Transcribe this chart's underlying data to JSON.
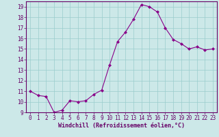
{
  "x": [
    0,
    1,
    2,
    3,
    4,
    5,
    6,
    7,
    8,
    9,
    10,
    11,
    12,
    13,
    14,
    15,
    16,
    17,
    18,
    19,
    20,
    21,
    22,
    23
  ],
  "y": [
    11.0,
    10.6,
    10.5,
    9.0,
    9.2,
    10.1,
    10.0,
    10.1,
    10.7,
    11.1,
    13.5,
    15.7,
    16.6,
    17.8,
    19.2,
    19.0,
    18.5,
    17.0,
    15.9,
    15.5,
    15.0,
    15.2,
    14.9,
    15.0
  ],
  "line_color": "#880088",
  "marker": "D",
  "marker_size": 2.0,
  "bg_color": "#cce8e8",
  "grid_color": "#99cccc",
  "xlabel": "Windchill (Refroidissement éolien,°C)",
  "xlabel_fontsize": 6.0,
  "ylim": [
    9.0,
    19.5
  ],
  "xlim": [
    -0.5,
    23.5
  ],
  "yticks": [
    9,
    10,
    11,
    12,
    13,
    14,
    15,
    16,
    17,
    18,
    19
  ],
  "xticks": [
    0,
    1,
    2,
    3,
    4,
    5,
    6,
    7,
    8,
    9,
    10,
    11,
    12,
    13,
    14,
    15,
    16,
    17,
    18,
    19,
    20,
    21,
    22,
    23
  ],
  "tick_fontsize": 5.5,
  "tick_color": "#660066",
  "spine_color": "#660066",
  "line_width": 0.8
}
